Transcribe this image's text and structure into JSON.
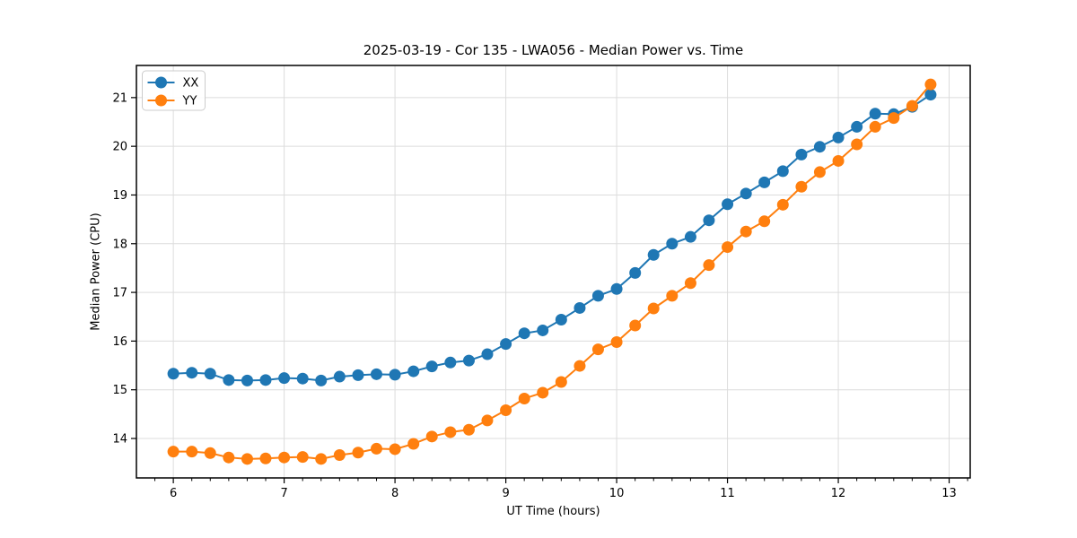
{
  "chart_data": {
    "type": "line",
    "title": "2025-03-19 - Cor 135 - LWA056 - Median Power vs. Time",
    "xlabel": "UT Time (hours)",
    "ylabel": "Median Power (CPU)",
    "x": [
      6.0,
      6.167,
      6.333,
      6.5,
      6.667,
      6.833,
      7.0,
      7.167,
      7.333,
      7.5,
      7.667,
      7.833,
      8.0,
      8.167,
      8.333,
      8.5,
      8.667,
      8.833,
      9.0,
      9.167,
      9.333,
      9.5,
      9.667,
      9.833,
      10.0,
      10.167,
      10.333,
      10.5,
      10.667,
      10.833,
      11.0,
      11.167,
      11.333,
      11.5,
      11.667,
      11.833,
      12.0,
      12.167,
      12.333,
      12.5,
      12.667,
      12.833
    ],
    "series": [
      {
        "name": "XX",
        "color": "#1f77b4",
        "values": [
          15.33,
          15.35,
          15.33,
          15.2,
          15.19,
          15.2,
          15.24,
          15.23,
          15.19,
          15.27,
          15.3,
          15.32,
          15.31,
          15.38,
          15.48,
          15.56,
          15.6,
          15.73,
          15.94,
          16.16,
          16.22,
          16.44,
          16.68,
          16.93,
          17.07,
          17.4,
          17.77,
          18.0,
          18.14,
          18.48,
          18.81,
          19.03,
          19.26,
          19.49,
          19.83,
          19.99,
          20.18,
          20.4,
          20.67,
          20.66,
          20.81,
          21.06
        ]
      },
      {
        "name": "YY",
        "color": "#ff7f0e",
        "values": [
          13.73,
          13.73,
          13.7,
          13.61,
          13.58,
          13.59,
          13.61,
          13.62,
          13.58,
          13.66,
          13.71,
          13.79,
          13.78,
          13.89,
          14.04,
          14.13,
          14.18,
          14.37,
          14.58,
          14.82,
          14.94,
          15.16,
          15.49,
          15.83,
          15.98,
          16.32,
          16.67,
          16.93,
          17.19,
          17.56,
          17.93,
          18.25,
          18.46,
          18.8,
          19.17,
          19.47,
          19.7,
          20.04,
          20.4,
          20.58,
          20.83,
          21.27
        ]
      }
    ],
    "xlim": [
      5.667,
      13.19
    ],
    "ylim": [
      13.19,
      21.66
    ],
    "xticks": [
      6,
      7,
      8,
      9,
      10,
      11,
      12,
      13
    ],
    "yticks": [
      14,
      15,
      16,
      17,
      18,
      19,
      20,
      21
    ],
    "x_minor_ticks_per_hour": 6,
    "grid": true,
    "legend_position": "upper-left",
    "marker": "circle",
    "marker_radius": 6.5,
    "line_width": 2,
    "grid_color": "#dcdcdc",
    "spine_color": "#000000",
    "tick_color": "#000000",
    "text_color": "#000000",
    "legend_border_color": "#cccccc",
    "background_color": "#ffffff"
  }
}
